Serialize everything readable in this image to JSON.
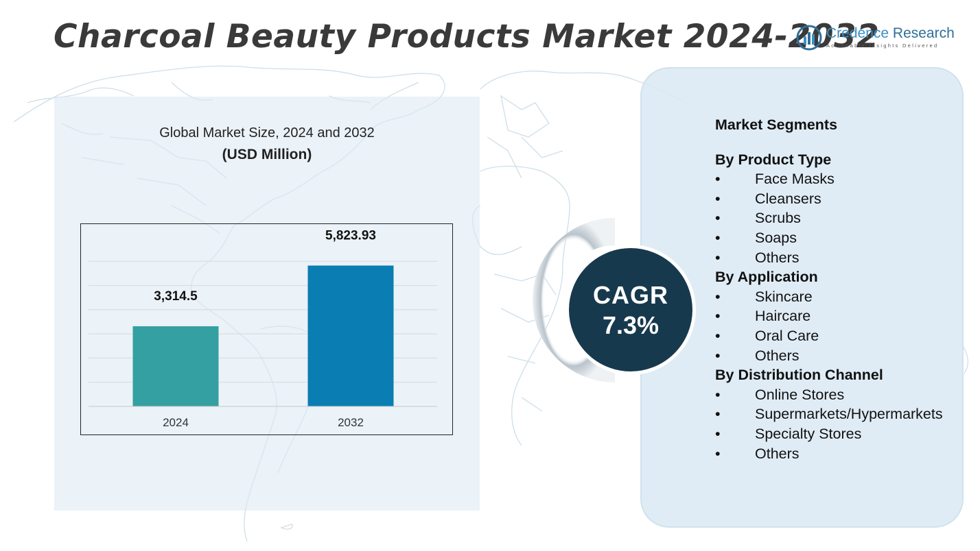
{
  "title": "Charcoal Beauty Products Market 2024-2032",
  "logo": {
    "name_first": "Credence",
    "name_second": " Research",
    "tagline": "Actionable Insights Delivered"
  },
  "chart_data": {
    "type": "bar",
    "title": "Global Market Size, 2024 and 2032",
    "subtitle": "(USD Million)",
    "categories": [
      "2024",
      "2032"
    ],
    "values": [
      3314.5,
      5823.93
    ],
    "value_labels": [
      "3,314.5",
      "5,823.93"
    ],
    "colors": [
      "#35a0a2",
      "#0a7db3"
    ],
    "ylim": [
      0,
      7000
    ],
    "grid": true,
    "legend": "none"
  },
  "cagr": {
    "label": "CAGR",
    "value": "7.3%"
  },
  "segments": {
    "heading": "Market Segments",
    "groups": [
      {
        "title": "By Product Type",
        "items": [
          "Face Masks",
          "Cleansers",
          "Scrubs",
          "Soaps",
          "Others"
        ]
      },
      {
        "title": "By Application",
        "items": [
          "Skincare",
          "Haircare",
          "Oral Care",
          "Others"
        ]
      },
      {
        "title": "By Distribution Channel",
        "items": [
          "Online Stores",
          "Supermarkets/Hypermarkets",
          "Specialty Stores",
          "Others"
        ]
      }
    ]
  }
}
